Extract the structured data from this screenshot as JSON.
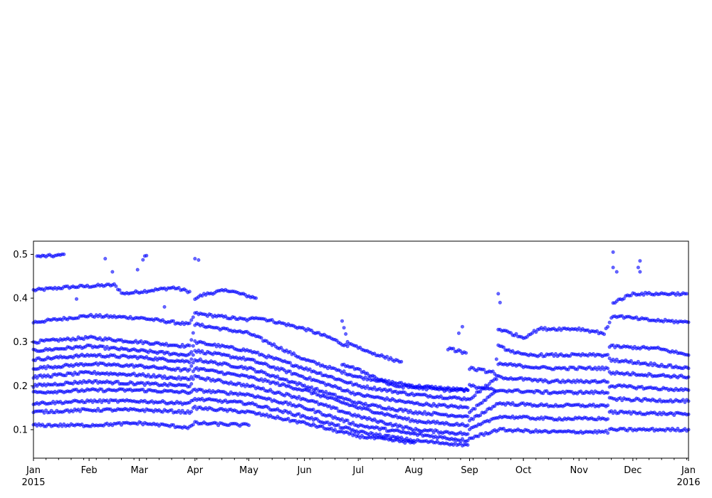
{
  "chart_data": {
    "type": "scatter",
    "title": "",
    "xlabel": "",
    "ylabel": "",
    "xlim": [
      "2015-01-01",
      "2016-01-01"
    ],
    "ylim": [
      0.035,
      0.53
    ],
    "grid": false,
    "legend": "none",
    "marker_color": "#0000ff",
    "x_ticks": [
      {
        "date": "2015-01-01",
        "label": "Jan",
        "sublabel": "2015"
      },
      {
        "date": "2015-02-01",
        "label": "Feb",
        "sublabel": ""
      },
      {
        "date": "2015-03-01",
        "label": "Mar",
        "sublabel": ""
      },
      {
        "date": "2015-04-01",
        "label": "Apr",
        "sublabel": ""
      },
      {
        "date": "2015-05-01",
        "label": "May",
        "sublabel": ""
      },
      {
        "date": "2015-06-01",
        "label": "Jun",
        "sublabel": ""
      },
      {
        "date": "2015-07-01",
        "label": "Jul",
        "sublabel": ""
      },
      {
        "date": "2015-08-01",
        "label": "Aug",
        "sublabel": ""
      },
      {
        "date": "2015-09-01",
        "label": "Sep",
        "sublabel": ""
      },
      {
        "date": "2015-10-01",
        "label": "Oct",
        "sublabel": ""
      },
      {
        "date": "2015-11-01",
        "label": "Nov",
        "sublabel": ""
      },
      {
        "date": "2015-12-01",
        "label": "Dec",
        "sublabel": ""
      },
      {
        "date": "2016-01-01",
        "label": "Jan",
        "sublabel": "2016"
      }
    ],
    "y_ticks": [
      {
        "value": 0.1,
        "label": "0.1"
      },
      {
        "value": 0.2,
        "label": "0.2"
      },
      {
        "value": 0.3,
        "label": "0.3"
      },
      {
        "value": 0.4,
        "label": "0.4"
      },
      {
        "value": 0.5,
        "label": "0.5"
      }
    ],
    "series": [
      {
        "values": [
          [
            "2015-01-01",
            0.418
          ],
          [
            "2015-01-20",
            0.425
          ],
          [
            "2015-02-15",
            0.43
          ],
          [
            "2015-02-20",
            0.41
          ],
          [
            "2015-03-20",
            0.424
          ],
          [
            "2015-03-29",
            0.415
          ]
        ]
      },
      {
        "values": [
          [
            "2015-01-03",
            0.495
          ],
          [
            "2015-01-15",
            0.497
          ],
          [
            "2015-01-18",
            0.5
          ]
        ]
      },
      {
        "values": [
          [
            "2015-03-03",
            0.49
          ],
          [
            "2015-03-05",
            0.497
          ]
        ]
      },
      {
        "values": [
          [
            "2015-04-01",
            0.4
          ],
          [
            "2015-04-06",
            0.408
          ],
          [
            "2015-04-14",
            0.415
          ],
          [
            "2015-04-20",
            0.418
          ],
          [
            "2015-04-26",
            0.41
          ],
          [
            "2015-05-05",
            0.4
          ]
        ]
      },
      {
        "values": [
          [
            "2015-01-01",
            0.345
          ],
          [
            "2015-02-01",
            0.36
          ],
          [
            "2015-03-01",
            0.355
          ],
          [
            "2015-03-29",
            0.34
          ],
          [
            "2015-04-01",
            0.365
          ],
          [
            "2015-05-01",
            0.35
          ],
          [
            "2015-05-05",
            0.357
          ],
          [
            "2015-06-01",
            0.33
          ],
          [
            "2015-06-15",
            0.31
          ],
          [
            "2015-06-25",
            0.29
          ]
        ]
      },
      {
        "values": [
          [
            "2015-01-01",
            0.3
          ],
          [
            "2015-02-01",
            0.31
          ],
          [
            "2015-03-01",
            0.3
          ],
          [
            "2015-03-29",
            0.29
          ],
          [
            "2015-04-01",
            0.34
          ],
          [
            "2015-05-01",
            0.32
          ],
          [
            "2015-06-01",
            0.26
          ],
          [
            "2015-07-01",
            0.22
          ],
          [
            "2015-08-01",
            0.2
          ],
          [
            "2015-08-31",
            0.19
          ]
        ]
      },
      {
        "values": [
          [
            "2015-01-01",
            0.28
          ],
          [
            "2015-02-01",
            0.29
          ],
          [
            "2015-03-01",
            0.28
          ],
          [
            "2015-03-29",
            0.27
          ],
          [
            "2015-04-01",
            0.3
          ],
          [
            "2015-05-01",
            0.28
          ],
          [
            "2015-06-01",
            0.24
          ],
          [
            "2015-07-01",
            0.2
          ],
          [
            "2015-08-01",
            0.18
          ],
          [
            "2015-08-31",
            0.17
          ]
        ]
      },
      {
        "values": [
          [
            "2015-01-01",
            0.26
          ],
          [
            "2015-02-01",
            0.27
          ],
          [
            "2015-03-01",
            0.265
          ],
          [
            "2015-03-29",
            0.255
          ],
          [
            "2015-04-01",
            0.28
          ],
          [
            "2015-05-01",
            0.26
          ],
          [
            "2015-06-01",
            0.22
          ],
          [
            "2015-07-01",
            0.18
          ],
          [
            "2015-08-01",
            0.16
          ],
          [
            "2015-08-31",
            0.15
          ]
        ]
      },
      {
        "values": [
          [
            "2015-01-01",
            0.24
          ],
          [
            "2015-02-01",
            0.25
          ],
          [
            "2015-03-01",
            0.245
          ],
          [
            "2015-03-29",
            0.235
          ],
          [
            "2015-04-01",
            0.26
          ],
          [
            "2015-05-01",
            0.24
          ],
          [
            "2015-06-01",
            0.2
          ],
          [
            "2015-07-01",
            0.16
          ],
          [
            "2015-08-01",
            0.14
          ],
          [
            "2015-08-31",
            0.13
          ]
        ]
      },
      {
        "values": [
          [
            "2015-01-01",
            0.22
          ],
          [
            "2015-02-01",
            0.23
          ],
          [
            "2015-03-01",
            0.225
          ],
          [
            "2015-03-29",
            0.215
          ],
          [
            "2015-04-01",
            0.24
          ],
          [
            "2015-05-01",
            0.22
          ],
          [
            "2015-06-01",
            0.19
          ],
          [
            "2015-07-01",
            0.15
          ],
          [
            "2015-08-01",
            0.12
          ],
          [
            "2015-08-31",
            0.11
          ]
        ]
      },
      {
        "values": [
          [
            "2015-01-01",
            0.2
          ],
          [
            "2015-02-01",
            0.21
          ],
          [
            "2015-03-01",
            0.205
          ],
          [
            "2015-03-29",
            0.2
          ],
          [
            "2015-04-01",
            0.22
          ],
          [
            "2015-05-01",
            0.2
          ],
          [
            "2015-06-01",
            0.17
          ],
          [
            "2015-07-01",
            0.13
          ],
          [
            "2015-08-01",
            0.1
          ],
          [
            "2015-08-31",
            0.09
          ]
        ]
      },
      {
        "values": [
          [
            "2015-01-01",
            0.185
          ],
          [
            "2015-02-01",
            0.19
          ],
          [
            "2015-03-01",
            0.19
          ],
          [
            "2015-03-29",
            0.185
          ],
          [
            "2015-04-01",
            0.19
          ],
          [
            "2015-05-01",
            0.18
          ],
          [
            "2015-06-01",
            0.15
          ],
          [
            "2015-07-01",
            0.11
          ],
          [
            "2015-08-01",
            0.09
          ],
          [
            "2015-08-31",
            0.075
          ]
        ]
      },
      {
        "values": [
          [
            "2015-01-01",
            0.16
          ],
          [
            "2015-02-01",
            0.165
          ],
          [
            "2015-03-01",
            0.165
          ],
          [
            "2015-03-29",
            0.16
          ],
          [
            "2015-04-01",
            0.17
          ],
          [
            "2015-05-01",
            0.16
          ],
          [
            "2015-06-01",
            0.13
          ],
          [
            "2015-07-01",
            0.095
          ],
          [
            "2015-08-01",
            0.075
          ],
          [
            "2015-08-31",
            0.065
          ]
        ]
      },
      {
        "values": [
          [
            "2015-01-01",
            0.14
          ],
          [
            "2015-02-01",
            0.145
          ],
          [
            "2015-03-01",
            0.145
          ],
          [
            "2015-03-29",
            0.14
          ],
          [
            "2015-04-01",
            0.15
          ],
          [
            "2015-05-01",
            0.14
          ],
          [
            "2015-06-01",
            0.115
          ],
          [
            "2015-07-01",
            0.085
          ],
          [
            "2015-08-01",
            0.07
          ]
        ]
      },
      {
        "values": [
          [
            "2015-01-01",
            0.11
          ],
          [
            "2015-02-01",
            0.11
          ],
          [
            "2015-03-01",
            0.115
          ],
          [
            "2015-03-29",
            0.105
          ],
          [
            "2015-04-01",
            0.115
          ],
          [
            "2015-05-01",
            0.11
          ]
        ]
      },
      {
        "values": [
          [
            "2015-06-22",
            0.25
          ],
          [
            "2015-07-05",
            0.23
          ],
          [
            "2015-07-20",
            0.2
          ],
          [
            "2015-08-20",
            0.19
          ],
          [
            "2015-08-31",
            0.19
          ]
        ]
      },
      {
        "values": [
          [
            "2015-08-20",
            0.285
          ],
          [
            "2015-08-25",
            0.28
          ],
          [
            "2015-08-30",
            0.275
          ]
        ]
      },
      {
        "values": [
          [
            "2015-06-22",
            0.35
          ],
          [
            "2015-06-25",
            0.3
          ],
          [
            "2015-07-05",
            0.28
          ],
          [
            "2015-07-20",
            0.26
          ],
          [
            "2015-07-25",
            0.255
          ]
        ]
      },
      {
        "values": [
          [
            "2015-09-01",
            0.24
          ],
          [
            "2015-09-15",
            0.23
          ],
          [
            "2015-09-17",
            0.29
          ],
          [
            "2015-10-01",
            0.27
          ],
          [
            "2015-11-01",
            0.27
          ],
          [
            "2015-11-17",
            0.27
          ],
          [
            "2015-11-18",
            0.29
          ],
          [
            "2015-12-15",
            0.285
          ],
          [
            "2016-01-01",
            0.27
          ]
        ]
      },
      {
        "values": [
          [
            "2015-09-17",
            0.33
          ],
          [
            "2015-10-01",
            0.31
          ],
          [
            "2015-10-10",
            0.33
          ],
          [
            "2015-11-01",
            0.33
          ],
          [
            "2015-11-15",
            0.32
          ],
          [
            "2015-11-20",
            0.36
          ],
          [
            "2015-12-10",
            0.35
          ],
          [
            "2016-01-01",
            0.345
          ]
        ]
      },
      {
        "values": [
          [
            "2015-11-20",
            0.39
          ],
          [
            "2015-12-01",
            0.41
          ],
          [
            "2015-12-20",
            0.41
          ],
          [
            "2015-12-31",
            0.41
          ]
        ]
      },
      {
        "values": [
          [
            "2015-09-01",
            0.2
          ],
          [
            "2015-09-15",
            0.19
          ],
          [
            "2015-09-17",
            0.25
          ],
          [
            "2015-10-15",
            0.24
          ],
          [
            "2015-11-17",
            0.24
          ],
          [
            "2015-11-18",
            0.26
          ],
          [
            "2016-01-01",
            0.24
          ]
        ]
      },
      {
        "values": [
          [
            "2015-09-01",
            0.17
          ],
          [
            "2015-09-17",
            0.22
          ],
          [
            "2015-10-15",
            0.21
          ],
          [
            "2015-11-17",
            0.21
          ],
          [
            "2015-11-18",
            0.23
          ],
          [
            "2016-01-01",
            0.22
          ]
        ]
      },
      {
        "values": [
          [
            "2015-09-01",
            0.14
          ],
          [
            "2015-09-17",
            0.19
          ],
          [
            "2015-10-15",
            0.185
          ],
          [
            "2015-11-17",
            0.185
          ],
          [
            "2015-11-18",
            0.2
          ],
          [
            "2016-01-01",
            0.19
          ]
        ]
      },
      {
        "values": [
          [
            "2015-09-01",
            0.12
          ],
          [
            "2015-09-17",
            0.16
          ],
          [
            "2015-10-15",
            0.155
          ],
          [
            "2015-11-17",
            0.155
          ],
          [
            "2015-11-18",
            0.17
          ],
          [
            "2016-01-01",
            0.165
          ]
        ]
      },
      {
        "values": [
          [
            "2015-09-01",
            0.1
          ],
          [
            "2015-09-17",
            0.13
          ],
          [
            "2015-10-15",
            0.125
          ],
          [
            "2015-11-17",
            0.125
          ],
          [
            "2015-11-18",
            0.14
          ],
          [
            "2016-01-01",
            0.135
          ]
        ]
      },
      {
        "values": [
          [
            "2015-09-01",
            0.08
          ],
          [
            "2015-09-17",
            0.1
          ],
          [
            "2015-10-15",
            0.095
          ],
          [
            "2015-11-17",
            0.095
          ],
          [
            "2015-11-18",
            0.1
          ],
          [
            "2016-01-01",
            0.1
          ]
        ]
      }
    ],
    "outliers": [
      [
        "2015-11-20",
        0.505
      ],
      [
        "2015-11-20",
        0.47
      ],
      [
        "2015-11-22",
        0.46
      ],
      [
        "2015-12-05",
        0.485
      ],
      [
        "2015-12-04",
        0.47
      ],
      [
        "2015-12-05",
        0.46
      ],
      [
        "2015-09-17",
        0.41
      ],
      [
        "2015-09-18",
        0.39
      ],
      [
        "2015-04-01",
        0.49
      ],
      [
        "2015-04-03",
        0.487
      ],
      [
        "2015-02-28",
        0.465
      ],
      [
        "2015-02-10",
        0.49
      ],
      [
        "2015-02-14",
        0.46
      ],
      [
        "2015-08-26",
        0.32
      ],
      [
        "2015-08-28",
        0.335
      ],
      [
        "2015-01-25",
        0.398
      ],
      [
        "2015-03-15",
        0.38
      ]
    ]
  }
}
